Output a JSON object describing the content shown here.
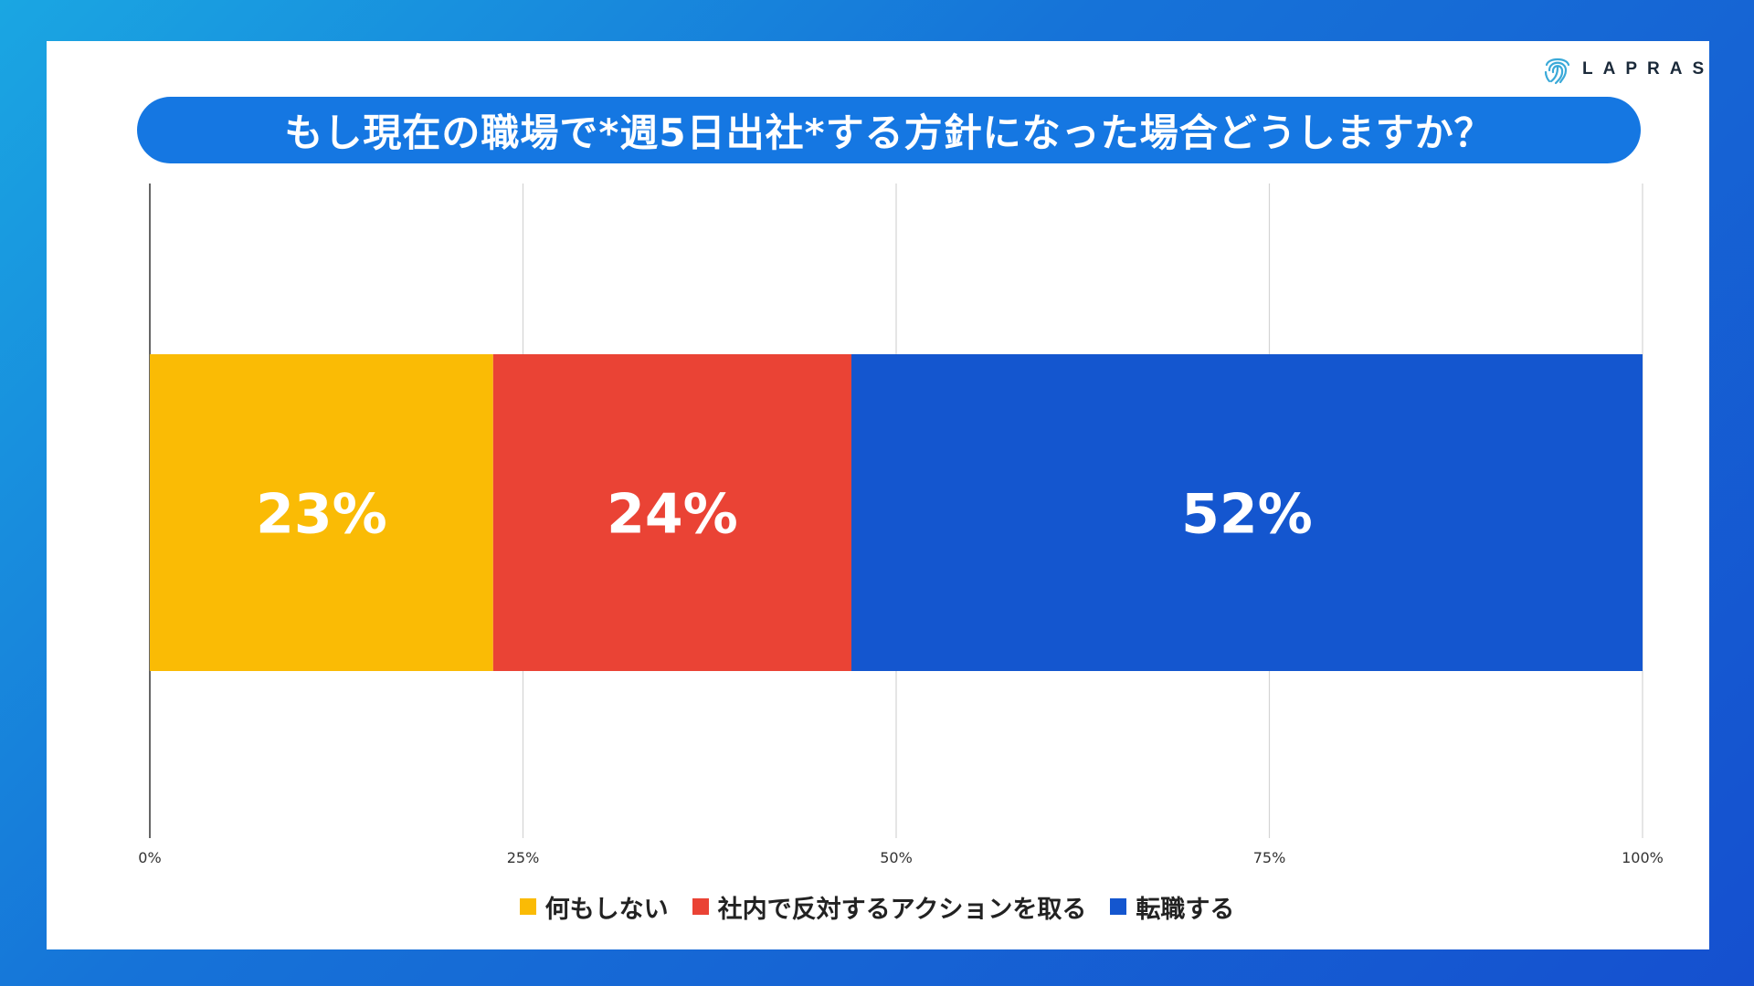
{
  "brand": {
    "name": "LAPRAS"
  },
  "colors": {
    "nothing": "#FABB05",
    "oppose": "#EA4335",
    "change_job": "#1456CF",
    "title_bg": "#1577E2",
    "grid": "#d4d4d4",
    "axis": "#333333"
  },
  "chart_data": {
    "type": "bar",
    "orientation": "horizontal-stacked-100",
    "title": "もし現在の職場で*週5日出社*する方針になった場合どうしますか？",
    "xlim": [
      0,
      100
    ],
    "x_ticks": [
      0,
      25,
      50,
      75,
      100
    ],
    "x_tick_labels": [
      "0%",
      "25%",
      "50%",
      "75%",
      "100%"
    ],
    "categories": [
      ""
    ],
    "series": [
      {
        "name": "何もしない",
        "values": [
          23
        ],
        "label": "23%",
        "color": "#FABB05"
      },
      {
        "name": "社内で反対するアクションを取る",
        "values": [
          24
        ],
        "label": "24%",
        "color": "#EA4335"
      },
      {
        "name": "転職する",
        "values": [
          52
        ],
        "label": "52%",
        "color": "#1456CF"
      }
    ],
    "legend_position": "bottom",
    "grid": true
  }
}
